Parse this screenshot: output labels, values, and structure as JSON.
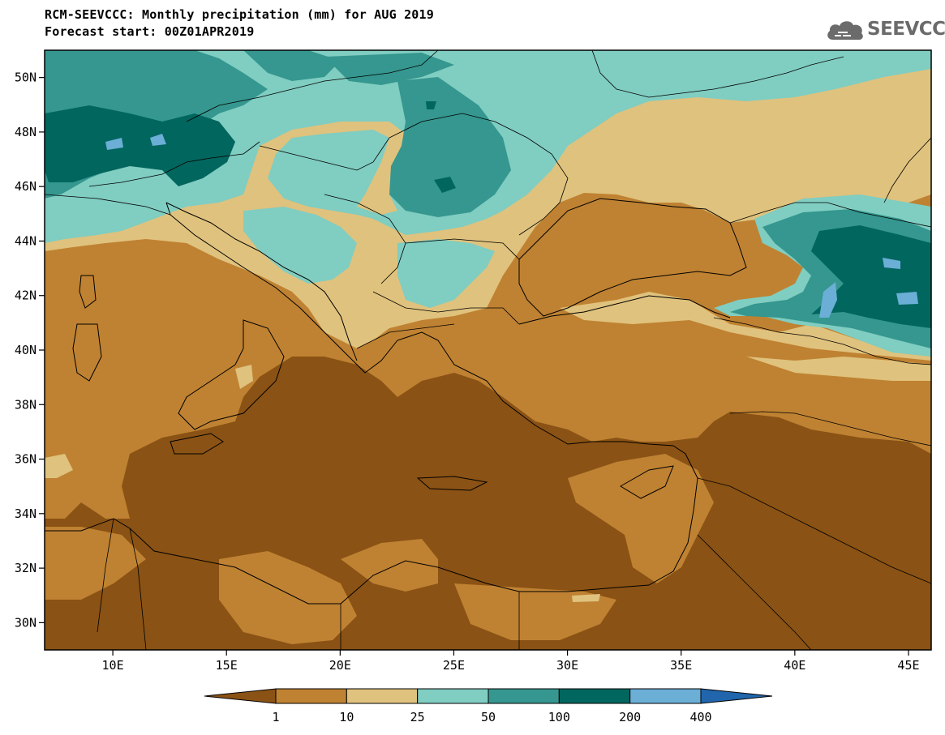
{
  "header": {
    "title": "RCM-SEEVCCC: Monthly precipitation (mm) for AUG 2019",
    "subtitle": "Forecast start: 00Z01APR2019",
    "logo_text": "SEEVCCC"
  },
  "map": {
    "lon_range": [
      7,
      46
    ],
    "lat_range": [
      29,
      51
    ],
    "lat_ticks": [
      "30N",
      "32N",
      "34N",
      "36N",
      "38N",
      "40N",
      "42N",
      "44N",
      "46N",
      "48N",
      "50N"
    ],
    "lat_tick_values": [
      30,
      32,
      34,
      36,
      38,
      40,
      42,
      44,
      46,
      48,
      50
    ],
    "lon_ticks": [
      "10E",
      "15E",
      "20E",
      "25E",
      "30E",
      "35E",
      "40E",
      "45E"
    ],
    "lon_tick_values": [
      10,
      15,
      20,
      25,
      30,
      35,
      40,
      45
    ]
  },
  "colorbar": {
    "labels": [
      "1",
      "10",
      "25",
      "50",
      "100",
      "200",
      "400"
    ],
    "colors": [
      "#8a5214",
      "#bf8232",
      "#dfc27d",
      "#80cdc1",
      "#35978f",
      "#01665e",
      "#6baed6",
      "#2166ac"
    ],
    "bins": [
      "<1",
      "1-10",
      "10-25",
      "25-50",
      "50-100",
      "100-200",
      "200-400",
      ">400"
    ]
  }
}
